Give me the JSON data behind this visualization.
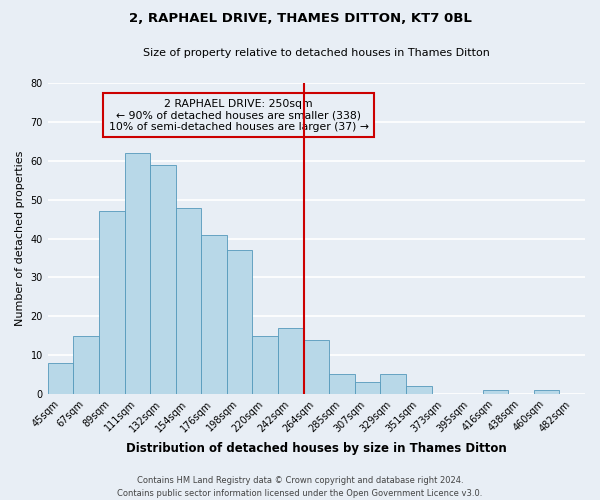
{
  "title": "2, RAPHAEL DRIVE, THAMES DITTON, KT7 0BL",
  "subtitle": "Size of property relative to detached houses in Thames Ditton",
  "xlabel": "Distribution of detached houses by size in Thames Ditton",
  "ylabel": "Number of detached properties",
  "footer_line1": "Contains HM Land Registry data © Crown copyright and database right 2024.",
  "footer_line2": "Contains public sector information licensed under the Open Government Licence v3.0.",
  "bin_labels": [
    "45sqm",
    "67sqm",
    "89sqm",
    "111sqm",
    "132sqm",
    "154sqm",
    "176sqm",
    "198sqm",
    "220sqm",
    "242sqm",
    "264sqm",
    "285sqm",
    "307sqm",
    "329sqm",
    "351sqm",
    "373sqm",
    "395sqm",
    "416sqm",
    "438sqm",
    "460sqm",
    "482sqm"
  ],
  "bar_heights": [
    8,
    15,
    47,
    62,
    59,
    48,
    41,
    37,
    15,
    17,
    14,
    5,
    3,
    5,
    2,
    0,
    0,
    1,
    0,
    1,
    0
  ],
  "bar_color": "#b8d8e8",
  "bar_edge_color": "#5599bb",
  "annotation_title": "2 RAPHAEL DRIVE: 250sqm",
  "annotation_line1": "← 90% of detached houses are smaller (338)",
  "annotation_line2": "10% of semi-detached houses are larger (37) →",
  "vline_x_index": 9.5,
  "vline_color": "#cc0000",
  "annotation_box_edge": "#cc0000",
  "ylim": [
    0,
    80
  ],
  "yticks": [
    0,
    10,
    20,
    30,
    40,
    50,
    60,
    70,
    80
  ],
  "background_color": "#e8eef5",
  "grid_color": "#ffffff",
  "title_fontsize": 9.5,
  "subtitle_fontsize": 8,
  "ylabel_fontsize": 8,
  "xlabel_fontsize": 8.5,
  "tick_fontsize": 7,
  "footer_fontsize": 6
}
